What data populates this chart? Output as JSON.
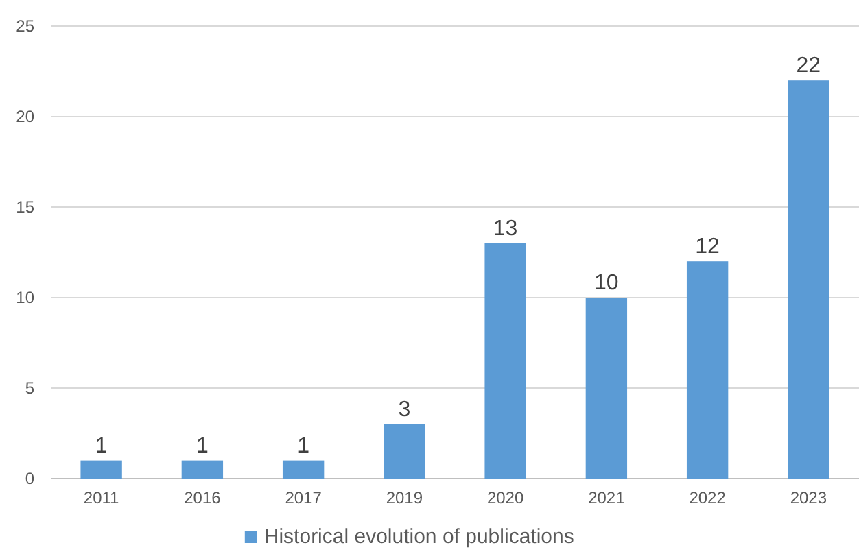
{
  "chart_data": {
    "type": "bar",
    "categories": [
      "2011",
      "2016",
      "2017",
      "2019",
      "2020",
      "2021",
      "2022",
      "2023"
    ],
    "series": [
      {
        "name": "Historical evolution of publications",
        "color": "#5b9bd5",
        "values": [
          1,
          1,
          1,
          3,
          13,
          10,
          12,
          22
        ]
      }
    ],
    "ylim": [
      0,
      25
    ],
    "yticks": [
      0,
      5,
      10,
      15,
      20,
      25
    ],
    "grid": "y",
    "legend": "bottom",
    "data_labels": true
  }
}
